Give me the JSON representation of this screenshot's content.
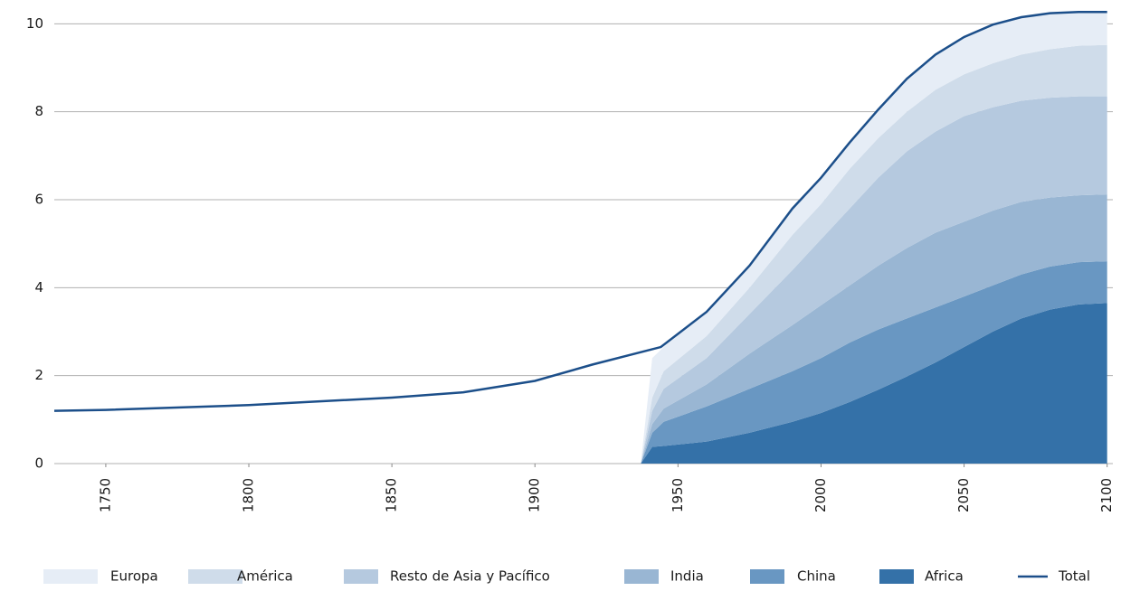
{
  "chart_data": {
    "type": "stacked-area",
    "x": [
      1937,
      1941,
      1945,
      1960,
      1975,
      1990,
      2000,
      2010,
      2020,
      2030,
      2040,
      2050,
      2060,
      2070,
      2080,
      2090,
      2100
    ],
    "series": [
      {
        "name": "Europa",
        "color": "#e6edf6",
        "values": [
          0,
          0.9,
          0.55,
          0.55,
          0.5,
          0.6,
          0.6,
          0.6,
          0.65,
          0.75,
          0.8,
          0.85,
          0.88,
          0.85,
          0.82,
          0.77,
          0.75
        ]
      },
      {
        "name": "América",
        "color": "#cfdcea",
        "values": [
          0,
          0.3,
          0.4,
          0.5,
          0.6,
          0.8,
          0.8,
          0.9,
          0.9,
          0.9,
          0.95,
          0.95,
          1.0,
          1.05,
          1.1,
          1.15,
          1.17
        ]
      },
      {
        "name": "Resto de Asia y Pacífico",
        "color": "#b5c9df",
        "values": [
          0,
          0.3,
          0.45,
          0.6,
          0.9,
          1.25,
          1.5,
          1.75,
          2.0,
          2.2,
          2.3,
          2.4,
          2.35,
          2.3,
          2.27,
          2.25,
          2.23
        ]
      },
      {
        "name": "India",
        "color": "#99b6d3",
        "values": [
          0,
          0.2,
          0.3,
          0.5,
          0.8,
          1.05,
          1.2,
          1.3,
          1.45,
          1.6,
          1.7,
          1.7,
          1.7,
          1.65,
          1.57,
          1.52,
          1.52
        ]
      },
      {
        "name": "China",
        "color": "#6997c2",
        "values": [
          0,
          0.32,
          0.55,
          0.8,
          1.0,
          1.15,
          1.25,
          1.35,
          1.37,
          1.32,
          1.25,
          1.15,
          1.05,
          1.0,
          0.98,
          0.96,
          0.95
        ]
      },
      {
        "name": "Africa",
        "color": "#3471a8",
        "values": [
          0,
          0.38,
          0.4,
          0.5,
          0.7,
          0.95,
          1.15,
          1.4,
          1.68,
          1.98,
          2.3,
          2.65,
          3.0,
          3.3,
          3.5,
          3.62,
          3.65
        ]
      }
    ],
    "total": {
      "name": "Total",
      "color": "#1c4f8a",
      "x": [
        1732,
        1750,
        1800,
        1850,
        1875,
        1900,
        1920,
        1944,
        1960,
        1975,
        1990,
        2000,
        2010,
        2020,
        2030,
        2040,
        2050,
        2060,
        2070,
        2080,
        2090,
        2100
      ],
      "values": [
        1.2,
        1.22,
        1.33,
        1.5,
        1.62,
        1.88,
        2.25,
        2.65,
        3.45,
        4.5,
        5.8,
        6.5,
        7.3,
        8.05,
        8.75,
        9.3,
        9.7,
        9.98,
        10.15,
        10.24,
        10.27,
        10.27
      ]
    },
    "xlim": [
      1732,
      2102
    ],
    "xticks": [
      1750,
      1800,
      1850,
      1900,
      1950,
      2000,
      2050,
      2100
    ],
    "ylim": [
      0,
      10.5
    ],
    "yticks": [
      0,
      2,
      4,
      6,
      8,
      10
    ],
    "grid": true
  }
}
